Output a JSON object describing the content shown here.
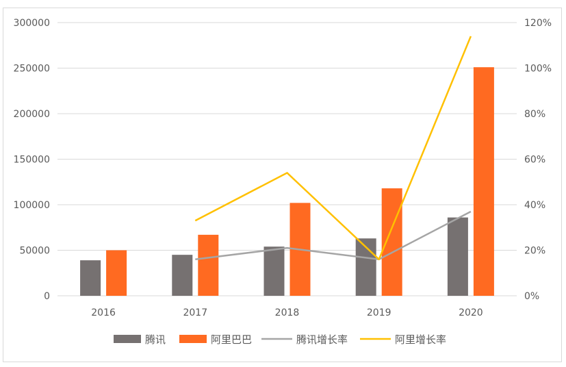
{
  "chart_data": {
    "type": "bar",
    "title": "",
    "categories": [
      "2016",
      "2017",
      "2018",
      "2019",
      "2020"
    ],
    "series": [
      {
        "name": "腾讯",
        "kind": "bar",
        "axis": "left",
        "color": "#767171",
        "values": [
          39000,
          45000,
          54000,
          63000,
          86000
        ]
      },
      {
        "name": "阿里巴巴",
        "kind": "bar",
        "axis": "left",
        "color": "#ff6a21",
        "values": [
          50000,
          67000,
          102000,
          118000,
          251000
        ]
      },
      {
        "name": "腾讯增长率",
        "kind": "line",
        "axis": "right",
        "color": "#a5a5a5",
        "values": [
          null,
          0.16,
          0.21,
          0.16,
          0.37
        ]
      },
      {
        "name": "阿里增长率",
        "kind": "line",
        "axis": "right",
        "color": "#ffc000",
        "values": [
          null,
          0.33,
          0.54,
          0.16,
          1.14
        ]
      }
    ],
    "y_left": {
      "min": 0,
      "max": 300000,
      "ticks": [
        "0",
        "50000",
        "100000",
        "150000",
        "200000",
        "250000",
        "300000"
      ]
    },
    "y_right": {
      "min": 0,
      "max": 1.2,
      "ticks": [
        "0%",
        "20%",
        "40%",
        "60%",
        "80%",
        "100%",
        "120%"
      ]
    },
    "grid": true,
    "legend_position": "bottom"
  }
}
